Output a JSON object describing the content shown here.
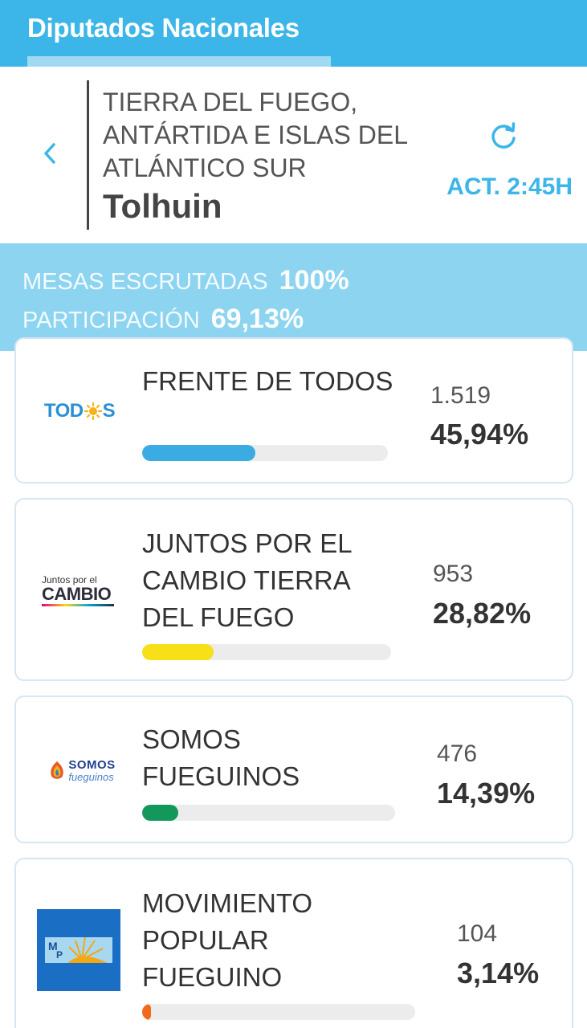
{
  "tab": {
    "title": "Diputados Nacionales"
  },
  "header": {
    "province": "TIERRA DEL FUEGO, ANTÁRTIDA E ISLAS DEL ATLÁNTICO SUR",
    "city": "Tolhuin",
    "update_time": "ACT. 2:45H",
    "icons": {
      "back": "chevron-left-icon",
      "refresh": "refresh-icon"
    }
  },
  "stats": {
    "mesas_label": "MESAS ESCRUTADAS",
    "mesas_value": "100%",
    "participacion_label": "PARTICIPACIÓN",
    "participacion_value": "69,13%"
  },
  "colors": {
    "accent": "#3cb6e8",
    "stats_bg": "#8dd4f1"
  },
  "parties": [
    {
      "name": "FRENTE DE TODOS",
      "votes": "1.519",
      "percent": "45,94%",
      "share": 45.94,
      "bar_color": "#3bace3",
      "logo": "todos-logo",
      "logo_text": "TOD S"
    },
    {
      "name": "JUNTOS POR EL CAMBIO TIERRA DEL FUEGO",
      "votes": "953",
      "percent": "28,82%",
      "share": 28.82,
      "bar_color": "#f7e017",
      "logo": "juntos-por-el-cambio-logo",
      "logo_small": "Juntos por el",
      "logo_big": "CAMBIO"
    },
    {
      "name": "SOMOS FUEGUINOS",
      "votes": "476",
      "percent": "14,39%",
      "share": 14.39,
      "bar_color": "#12985a",
      "logo": "somos-fueguinos-logo",
      "logo_big": "SOMOS",
      "logo_small": "fueguinos"
    },
    {
      "name": "MOVIMIENTO POPULAR FUEGUINO",
      "votes": "104",
      "percent": "3,14%",
      "share": 3.14,
      "bar_color": "#f26a1b",
      "logo": "mpf-logo"
    }
  ]
}
